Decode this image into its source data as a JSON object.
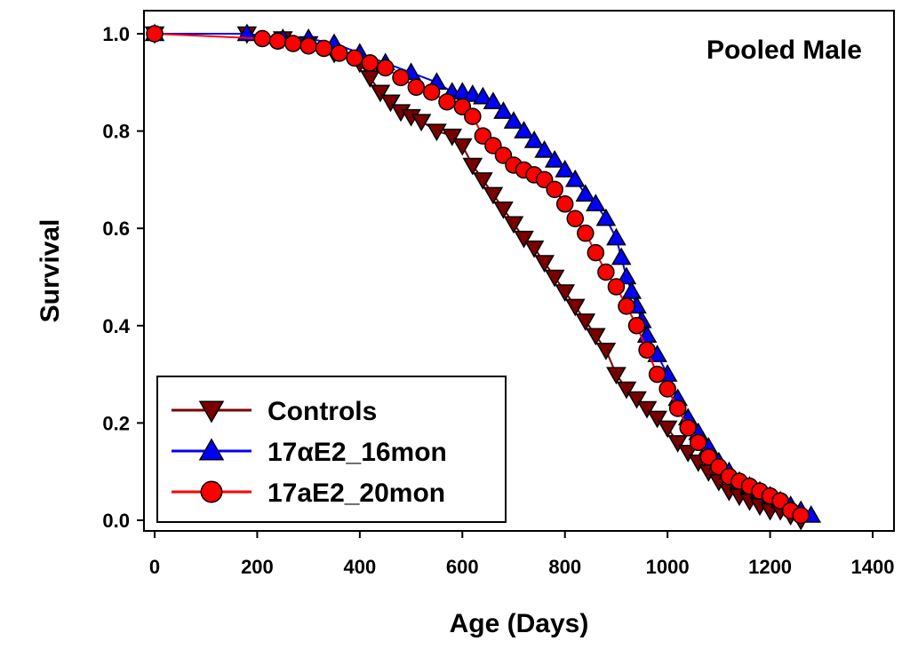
{
  "chart_data": {
    "type": "line",
    "title": "",
    "annotation": "Pooled Male",
    "xlabel": "Age (Days)",
    "ylabel": "Survival",
    "xlim": [
      0,
      1400
    ],
    "ylim": [
      0,
      1.0
    ],
    "xticks": [
      "0",
      "200",
      "400",
      "600",
      "800",
      "1000",
      "1200",
      "1400"
    ],
    "yticks": [
      "0.0",
      "0.2",
      "0.4",
      "0.6",
      "0.8",
      "1.0"
    ],
    "grid": false,
    "legend_position": "bottom-left",
    "series": [
      {
        "name": "Controls",
        "color": "#7a0000",
        "marker": "triangle-down",
        "x": [
          0,
          180,
          250,
          300,
          350,
          400,
          420,
          440,
          460,
          480,
          500,
          520,
          550,
          580,
          600,
          620,
          640,
          660,
          680,
          700,
          720,
          740,
          760,
          780,
          800,
          820,
          840,
          860,
          880,
          900,
          920,
          940,
          960,
          980,
          1000,
          1020,
          1040,
          1060,
          1080,
          1100,
          1120,
          1140,
          1160,
          1180,
          1200,
          1220,
          1240,
          1260
        ],
        "y": [
          1.0,
          1.0,
          0.99,
          0.98,
          0.96,
          0.94,
          0.91,
          0.88,
          0.86,
          0.84,
          0.83,
          0.82,
          0.8,
          0.79,
          0.77,
          0.73,
          0.7,
          0.67,
          0.64,
          0.61,
          0.58,
          0.56,
          0.53,
          0.5,
          0.47,
          0.44,
          0.41,
          0.38,
          0.35,
          0.3,
          0.27,
          0.25,
          0.23,
          0.21,
          0.19,
          0.16,
          0.14,
          0.12,
          0.1,
          0.08,
          0.06,
          0.05,
          0.04,
          0.03,
          0.02,
          0.02,
          0.01,
          0.0
        ]
      },
      {
        "name": "17αE2_16mon",
        "color": "#0000ff",
        "marker": "triangle-up",
        "x": [
          0,
          180,
          250,
          300,
          350,
          400,
          450,
          500,
          550,
          580,
          600,
          620,
          640,
          660,
          680,
          700,
          720,
          740,
          760,
          780,
          800,
          820,
          840,
          860,
          880,
          900,
          910,
          920,
          930,
          940,
          950,
          960,
          980,
          1000,
          1020,
          1040,
          1060,
          1080,
          1100,
          1120,
          1140,
          1160,
          1180,
          1200,
          1220,
          1240,
          1260,
          1280
        ],
        "y": [
          1.0,
          1.0,
          0.99,
          0.99,
          0.98,
          0.96,
          0.94,
          0.92,
          0.9,
          0.88,
          0.88,
          0.875,
          0.87,
          0.86,
          0.84,
          0.82,
          0.8,
          0.78,
          0.76,
          0.74,
          0.72,
          0.7,
          0.67,
          0.65,
          0.62,
          0.58,
          0.54,
          0.5,
          0.47,
          0.44,
          0.41,
          0.38,
          0.34,
          0.3,
          0.25,
          0.21,
          0.18,
          0.15,
          0.12,
          0.1,
          0.08,
          0.07,
          0.06,
          0.05,
          0.04,
          0.03,
          0.02,
          0.01
        ]
      },
      {
        "name": "17aE2_20mon",
        "color": "#ff0000",
        "marker": "circle",
        "x": [
          0,
          210,
          240,
          270,
          300,
          330,
          360,
          390,
          420,
          450,
          480,
          510,
          540,
          570,
          600,
          620,
          640,
          660,
          680,
          700,
          720,
          740,
          760,
          780,
          800,
          820,
          840,
          860,
          880,
          900,
          920,
          940,
          960,
          980,
          1000,
          1020,
          1040,
          1060,
          1080,
          1100,
          1120,
          1140,
          1160,
          1180,
          1200,
          1220,
          1240,
          1260
        ],
        "y": [
          1.0,
          0.99,
          0.985,
          0.98,
          0.975,
          0.97,
          0.96,
          0.95,
          0.94,
          0.93,
          0.91,
          0.89,
          0.88,
          0.86,
          0.85,
          0.83,
          0.79,
          0.77,
          0.75,
          0.73,
          0.72,
          0.71,
          0.7,
          0.68,
          0.65,
          0.62,
          0.59,
          0.55,
          0.51,
          0.48,
          0.44,
          0.4,
          0.35,
          0.3,
          0.27,
          0.23,
          0.19,
          0.16,
          0.13,
          0.11,
          0.09,
          0.08,
          0.07,
          0.06,
          0.05,
          0.04,
          0.02,
          0.01
        ]
      }
    ]
  }
}
